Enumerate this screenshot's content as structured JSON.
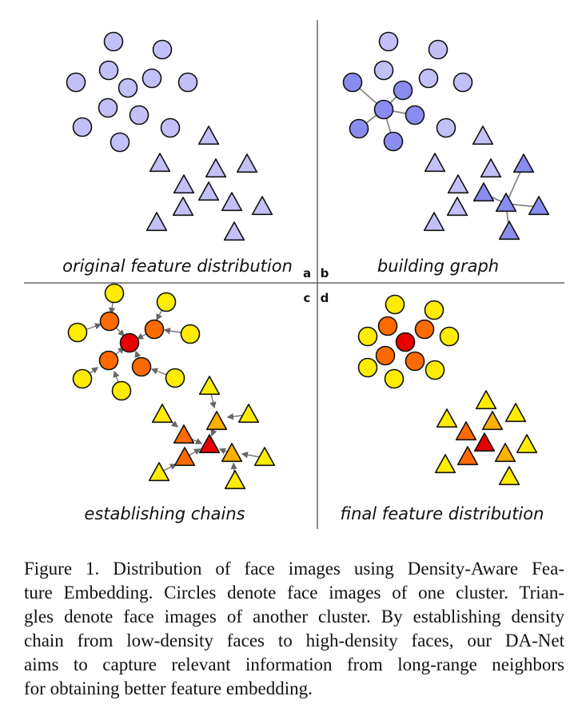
{
  "panels": {
    "a": {
      "letter": "a",
      "title": "original  feature distribution"
    },
    "b": {
      "letter": "b",
      "title": "building graph"
    },
    "c": {
      "letter": "c",
      "title": "establishing chains"
    },
    "d": {
      "letter": "d",
      "title": "final feature distribution"
    }
  },
  "colors": {
    "low_density": "#c3c0f7",
    "graph_node": "#8b8cf0",
    "chain_low": "#ffec00",
    "chain_mid": "#ffb000",
    "chain_high": "#ff6a00",
    "chain_top": "#e60000",
    "outline": "#111111",
    "edge": "#888888"
  },
  "caption": {
    "lines": [
      "Figure 1.  Distribution of face images using Density-Aware Fea-",
      "ture Embedding. Circles denote face images of one cluster. Trian-",
      "gles denote face images of another cluster. By establishing density",
      "chain from low-density faces to high-density faces, our DA-Net",
      "aims to capture relevant information from long-range neighbors",
      "for obtaining better feature embedding."
    ]
  }
}
